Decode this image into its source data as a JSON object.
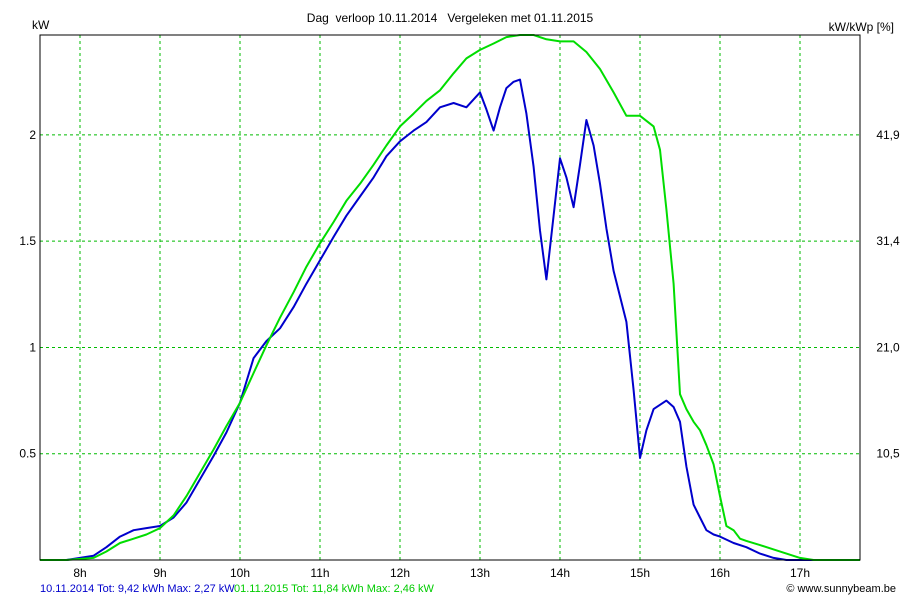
{
  "chart_data": {
    "type": "line",
    "title": "Dag  verloop 10.11.2014   Vergeleken met 01.11.2015",
    "ylabel_left": "kW",
    "ylabel_right": "kW/kWp [%]",
    "x_ticks": [
      "8h",
      "9h",
      "10h",
      "11h",
      "12h",
      "13h",
      "14h",
      "15h",
      "16h",
      "17h"
    ],
    "y_ticks": [
      "0.5",
      "1",
      "1.5",
      "2"
    ],
    "y2_ticks": [
      "10,5",
      "21,0",
      "31,4",
      "41,9"
    ],
    "xlim": [
      7.5,
      17.75
    ],
    "ylim": [
      0,
      2.47
    ],
    "grid": true,
    "series": [
      {
        "name": "10.11.2014",
        "color": "#0000cc",
        "x": [
          7.5,
          7.83,
          8.17,
          8.33,
          8.5,
          8.67,
          8.83,
          9.0,
          9.17,
          9.33,
          9.5,
          9.67,
          9.83,
          10.0,
          10.17,
          10.33,
          10.5,
          10.67,
          10.83,
          11.0,
          11.17,
          11.33,
          11.5,
          11.67,
          11.83,
          12.0,
          12.17,
          12.33,
          12.5,
          12.67,
          12.83,
          13.0,
          13.08,
          13.17,
          13.25,
          13.33,
          13.42,
          13.5,
          13.58,
          13.67,
          13.75,
          13.83,
          13.92,
          14.0,
          14.08,
          14.17,
          14.25,
          14.33,
          14.42,
          14.5,
          14.58,
          14.67,
          14.75,
          14.83,
          14.92,
          15.0,
          15.08,
          15.17,
          15.25,
          15.33,
          15.42,
          15.5,
          15.58,
          15.67,
          15.75,
          15.83,
          15.92,
          16.0,
          16.17,
          16.33,
          16.5,
          16.67,
          16.83,
          17.0,
          17.17,
          17.33,
          17.5,
          17.75
        ],
        "y": [
          0,
          0,
          0.02,
          0.06,
          0.11,
          0.14,
          0.15,
          0.16,
          0.2,
          0.27,
          0.38,
          0.49,
          0.6,
          0.74,
          0.95,
          1.03,
          1.09,
          1.19,
          1.3,
          1.41,
          1.52,
          1.62,
          1.71,
          1.8,
          1.9,
          1.97,
          2.02,
          2.06,
          2.13,
          2.15,
          2.13,
          2.2,
          2.12,
          2.02,
          2.13,
          2.22,
          2.25,
          2.26,
          2.1,
          1.85,
          1.55,
          1.32,
          1.62,
          1.89,
          1.8,
          1.66,
          1.86,
          2.07,
          1.95,
          1.77,
          1.56,
          1.36,
          1.24,
          1.12,
          0.8,
          0.48,
          0.61,
          0.71,
          0.73,
          0.75,
          0.72,
          0.65,
          0.44,
          0.26,
          0.2,
          0.14,
          0.12,
          0.11,
          0.08,
          0.06,
          0.03,
          0.01,
          0,
          0,
          0,
          0,
          0,
          0
        ]
      },
      {
        "name": "01.11.2015",
        "color": "#00dd00",
        "x": [
          7.5,
          7.83,
          8.17,
          8.33,
          8.5,
          8.67,
          8.83,
          9.0,
          9.17,
          9.33,
          9.5,
          9.67,
          9.83,
          10.0,
          10.17,
          10.33,
          10.5,
          10.67,
          10.83,
          11.0,
          11.17,
          11.33,
          11.5,
          11.67,
          11.83,
          12.0,
          12.17,
          12.33,
          12.5,
          12.67,
          12.83,
          13.0,
          13.17,
          13.33,
          13.5,
          13.67,
          13.83,
          14.0,
          14.17,
          14.33,
          14.5,
          14.67,
          14.83,
          15.0,
          15.17,
          15.25,
          15.33,
          15.42,
          15.5,
          15.58,
          15.67,
          15.75,
          15.83,
          15.92,
          16.0,
          16.08,
          16.17,
          16.25,
          16.33,
          16.5,
          16.67,
          16.83,
          17.0,
          17.17,
          17.33,
          17.5,
          17.75
        ],
        "y": [
          0,
          0,
          0.01,
          0.04,
          0.08,
          0.1,
          0.12,
          0.15,
          0.21,
          0.3,
          0.41,
          0.52,
          0.63,
          0.74,
          0.88,
          1.01,
          1.14,
          1.26,
          1.38,
          1.49,
          1.59,
          1.69,
          1.77,
          1.86,
          1.95,
          2.04,
          2.1,
          2.16,
          2.21,
          2.29,
          2.36,
          2.4,
          2.43,
          2.46,
          2.47,
          2.47,
          2.45,
          2.44,
          2.44,
          2.39,
          2.31,
          2.2,
          2.09,
          2.09,
          2.04,
          1.93,
          1.65,
          1.3,
          0.78,
          0.71,
          0.65,
          0.61,
          0.54,
          0.45,
          0.3,
          0.16,
          0.14,
          0.1,
          0.09,
          0.07,
          0.05,
          0.03,
          0.01,
          0,
          0,
          0,
          0
        ]
      }
    ]
  },
  "footer": {
    "series1": "10.11.2014 Tot: 9,42 kWh Max: 2,27 kW",
    "series2": "01.11.2015 Tot: 11,84 kWh Max: 2,46 kW"
  },
  "credit": "© www.sunnybeam.be"
}
